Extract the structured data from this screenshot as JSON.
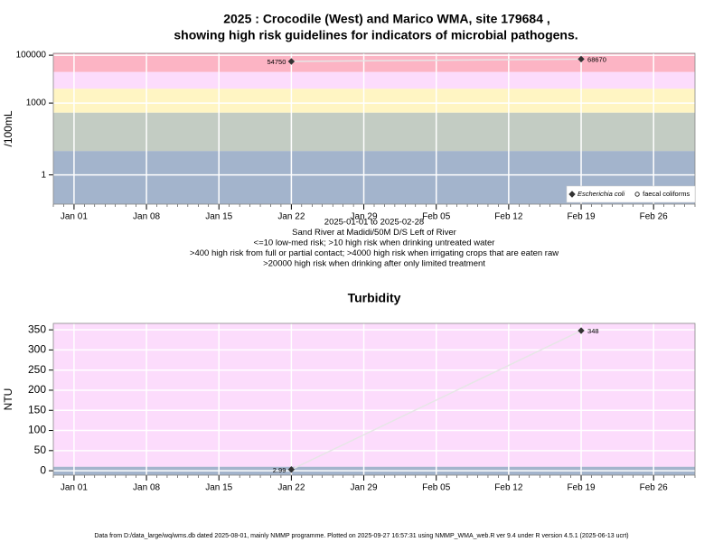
{
  "title": "2025 : Crocodile (West) and Marico WMA, site 179684 ,",
  "subtitle": "showing high risk guidelines for indicators of microbial pathogens.",
  "footer": "Data from D:/data_large/wq/wms.db dated 2025-08-01, mainly NMMP programme. Plotted on 2025-09-27 16:57:31 using NMMP_WMA_web.R ver 9.4 under R version 4.5.1 (2025-06-13 ucrt)",
  "chart_data": [
    {
      "type": "scatter",
      "ylabel": "/100mL",
      "log_scale": true,
      "grid": true,
      "legend": "bottom-right",
      "xlim": [
        "2024-12-30",
        "2025-03-02"
      ],
      "ylim": [
        0.06,
        120000
      ],
      "yticks": [
        1,
        1000,
        100000
      ],
      "xticks": [
        {
          "value": "2025-01-01",
          "label": "Jan 01"
        },
        {
          "value": "2025-01-08",
          "label": "Jan 08"
        },
        {
          "value": "2025-01-15",
          "label": "Jan 15"
        },
        {
          "value": "2025-01-22",
          "label": "Jan 22"
        },
        {
          "value": "2025-01-29",
          "label": "Jan 29"
        },
        {
          "value": "2025-02-05",
          "label": "Feb 05"
        },
        {
          "value": "2025-02-12",
          "label": "Feb 12"
        },
        {
          "value": "2025-02-19",
          "label": "Feb 19"
        },
        {
          "value": "2025-02-26",
          "label": "Feb 26"
        }
      ],
      "band_thresholds": [
        10,
        400,
        4000,
        20000
      ],
      "band_colors": [
        "#a3b4cc",
        "#c3ccc3",
        "#fff5c3",
        "#fcdcfc",
        "#fcb4c4"
      ],
      "x": [
        "2025-01-22",
        "2025-02-19"
      ],
      "series": [
        {
          "name": "Escherichia coli",
          "color": "#333333",
          "marker": "diamond",
          "values": [
            54750,
            68670
          ]
        },
        {
          "name": "faecal coliforms",
          "color": "#333333",
          "marker": "circle",
          "values": [
            null,
            null
          ]
        }
      ],
      "notes": [
        "2025-01-01 to 2025-02-28",
        "Sand River at Madidi/50M D/S Left of River",
        "<=10 low-med risk; >10 high risk when drinking untreated water",
        ">400 high risk from full or partial contact; >4000 high risk when irrigating crops that are eaten raw",
        ">20000 high risk when drinking after only limited treatment"
      ]
    },
    {
      "type": "scatter",
      "title": "Turbidity",
      "ylabel": "NTU",
      "log_scale": false,
      "grid": true,
      "xlim": [
        "2024-12-30",
        "2025-03-02"
      ],
      "ylim": [
        -11,
        366
      ],
      "yticks": [
        0,
        50,
        100,
        150,
        200,
        250,
        300,
        350
      ],
      "xticks": [
        {
          "value": "2025-01-01",
          "label": "Jan 01"
        },
        {
          "value": "2025-01-08",
          "label": "Jan 08"
        },
        {
          "value": "2025-01-15",
          "label": "Jan 15"
        },
        {
          "value": "2025-01-22",
          "label": "Jan 22"
        },
        {
          "value": "2025-01-29",
          "label": "Jan 29"
        },
        {
          "value": "2025-02-05",
          "label": "Feb 05"
        },
        {
          "value": "2025-02-12",
          "label": "Feb 12"
        },
        {
          "value": "2025-02-19",
          "label": "Feb 19"
        },
        {
          "value": "2025-02-26",
          "label": "Feb 26"
        }
      ],
      "band_thresholds": [
        10
      ],
      "band_colors": [
        "#a3b4cc",
        "#fcdcfc"
      ],
      "x": [
        "2025-01-22",
        "2025-02-19"
      ],
      "series": [
        {
          "name": "Turbidity",
          "color": "#333333",
          "marker": "diamond",
          "values": [
            2.99,
            348
          ]
        }
      ]
    }
  ]
}
